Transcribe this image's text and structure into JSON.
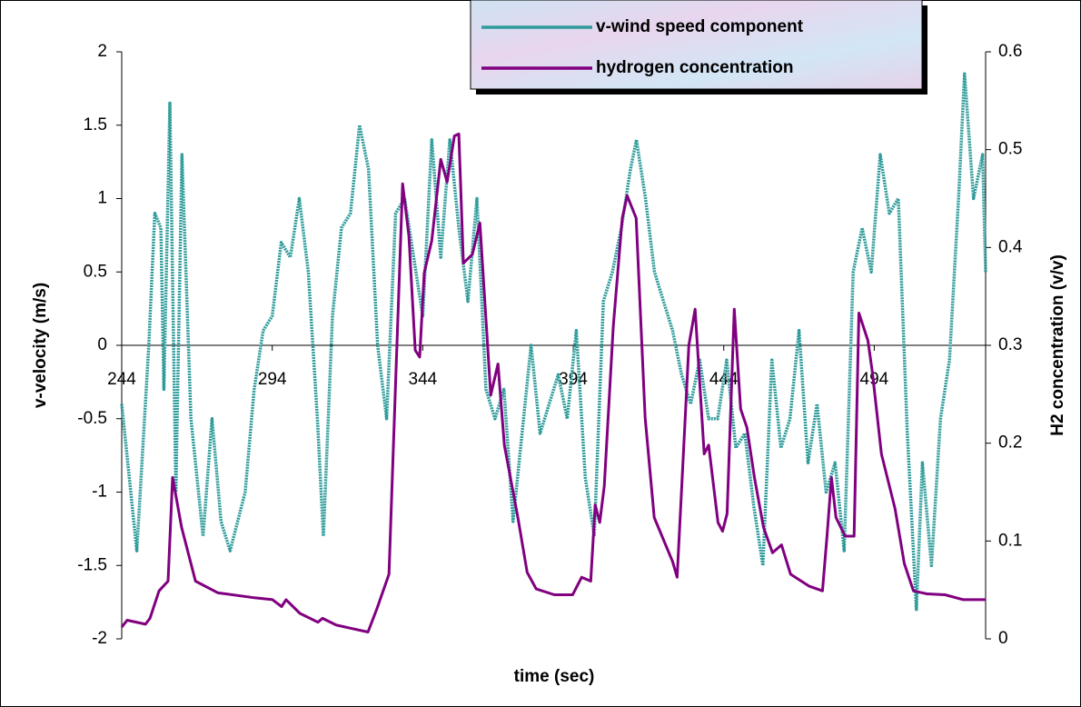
{
  "chart_data": {
    "type": "line",
    "x_label": "time (sec)",
    "y_label": "v-velocity (m/s)",
    "y2_label": "H2 concentration (v/v)",
    "xlim": [
      244,
      531
    ],
    "xticks": [
      244,
      294,
      344,
      394,
      444,
      494
    ],
    "ylim": [
      -2,
      2
    ],
    "yticks": [
      -2,
      -1.5,
      -1,
      -0.5,
      0,
      0.5,
      1,
      1.5,
      2
    ],
    "y2lim": [
      0,
      0.6
    ],
    "y2ticks": [
      0,
      0.1,
      0.2,
      0.3,
      0.4,
      0.5,
      0.6
    ],
    "legend": "top",
    "series": [
      {
        "name": "v-wind speed component",
        "color": "#2f9b9b",
        "x": [
          244,
          249,
          253,
          255,
          257,
          258,
          260,
          262,
          264,
          267,
          271,
          274,
          277,
          280,
          285,
          288,
          291,
          294,
          297,
          300,
          303,
          306,
          309,
          311,
          314,
          317,
          320,
          323,
          326,
          329,
          332,
          335,
          338,
          341,
          344,
          347,
          350,
          353,
          356,
          359,
          362,
          365,
          368,
          371,
          374,
          377,
          380,
          383,
          386,
          389,
          392,
          395,
          398,
          401,
          404,
          407,
          410,
          413,
          415,
          418,
          421,
          424,
          427,
          430,
          433,
          436,
          439,
          442,
          445,
          448,
          451,
          454,
          457,
          460,
          463,
          466,
          469,
          472,
          475,
          478,
          481,
          484,
          487,
          490,
          493,
          496,
          499,
          502,
          505,
          508,
          510,
          513,
          516,
          519,
          522,
          524,
          527,
          530,
          531
        ],
        "values": [
          -0.4,
          -1.4,
          0.0,
          0.9,
          0.8,
          -0.3,
          1.65,
          -1.0,
          1.3,
          -0.5,
          -1.3,
          -0.5,
          -1.2,
          -1.4,
          -1.0,
          -0.3,
          0.1,
          0.2,
          0.7,
          0.6,
          1.0,
          0.5,
          -0.5,
          -1.3,
          0.2,
          0.8,
          0.9,
          1.5,
          1.2,
          0.0,
          -0.5,
          0.9,
          1.0,
          0.6,
          0.2,
          1.4,
          0.6,
          1.4,
          0.8,
          0.3,
          1.0,
          -0.3,
          -0.5,
          -0.3,
          -1.2,
          -0.6,
          0.0,
          -0.6,
          -0.4,
          -0.2,
          -0.5,
          0.1,
          -0.9,
          -1.3,
          0.3,
          0.5,
          0.8,
          1.2,
          1.4,
          1.0,
          0.5,
          0.3,
          0.1,
          -0.2,
          -0.4,
          -0.1,
          -0.5,
          -0.5,
          -0.1,
          -0.7,
          -0.6,
          -1.1,
          -1.5,
          -0.1,
          -0.7,
          -0.5,
          0.1,
          -0.8,
          -0.4,
          -1.0,
          -0.8,
          -1.4,
          0.5,
          0.8,
          0.5,
          1.3,
          0.9,
          1.0,
          -0.6,
          -1.8,
          -0.8,
          -1.5,
          -0.5,
          -0.1,
          1.0,
          1.85,
          1.0,
          1.3,
          0.5
        ]
      },
      {
        "name": "hydrogen concentration",
        "color": "#800080",
        "axis": "y2",
        "x": [
          244,
          245.8,
          251.9,
          253.4,
          256.4,
          259.4,
          260.9,
          263.9,
          265.4,
          268.5,
          276,
          288.1,
          294.1,
          297.1,
          298.6,
          303.2,
          309.2,
          310.7,
          315.3,
          325.8,
          328.8,
          332.8,
          334.9,
          337.3,
          339.4,
          341.5,
          343,
          344.5,
          347,
          350,
          352.1,
          354.5,
          356,
          357.5,
          360.5,
          363,
          366.6,
          369,
          371.1,
          375.6,
          378.7,
          381.7,
          387.7,
          393.8,
          396.8,
          399.8,
          401.3,
          402.8,
          404.3,
          407.3,
          410.3,
          411.9,
          414.9,
          417.9,
          420.9,
          427,
          428.5,
          430.6,
          432.4,
          434.5,
          437.5,
          439,
          442.1,
          443.6,
          445.1,
          447.5,
          449.6,
          451.7,
          454.2,
          457.2,
          460.2,
          463.2,
          466.2,
          472.3,
          476.8,
          478.3,
          479.8,
          481.3,
          484.3,
          487.3,
          488.9,
          491.9,
          493.4,
          496.4,
          500.9,
          504,
          507,
          511.5,
          517.5,
          523.6,
          531
        ],
        "values": [
          0.012,
          0.019,
          0.015,
          0.021,
          0.049,
          0.059,
          0.165,
          0.114,
          0.096,
          0.059,
          0.047,
          0.042,
          0.04,
          0.033,
          0.04,
          0.026,
          0.017,
          0.021,
          0.014,
          0.007,
          0.031,
          0.066,
          0.254,
          0.465,
          0.412,
          0.295,
          0.288,
          0.374,
          0.407,
          0.49,
          0.467,
          0.514,
          0.516,
          0.384,
          0.393,
          0.425,
          0.249,
          0.281,
          0.198,
          0.124,
          0.068,
          0.051,
          0.045,
          0.045,
          0.063,
          0.059,
          0.137,
          0.119,
          0.156,
          0.319,
          0.43,
          0.453,
          0.43,
          0.226,
          0.124,
          0.079,
          0.063,
          0.189,
          0.3,
          0.337,
          0.189,
          0.198,
          0.119,
          0.11,
          0.128,
          0.337,
          0.235,
          0.216,
          0.165,
          0.114,
          0.088,
          0.096,
          0.066,
          0.054,
          0.049,
          0.105,
          0.165,
          0.124,
          0.105,
          0.105,
          0.333,
          0.305,
          0.272,
          0.189,
          0.133,
          0.077,
          0.049,
          0.046,
          0.045,
          0.04,
          0.04
        ]
      }
    ]
  }
}
